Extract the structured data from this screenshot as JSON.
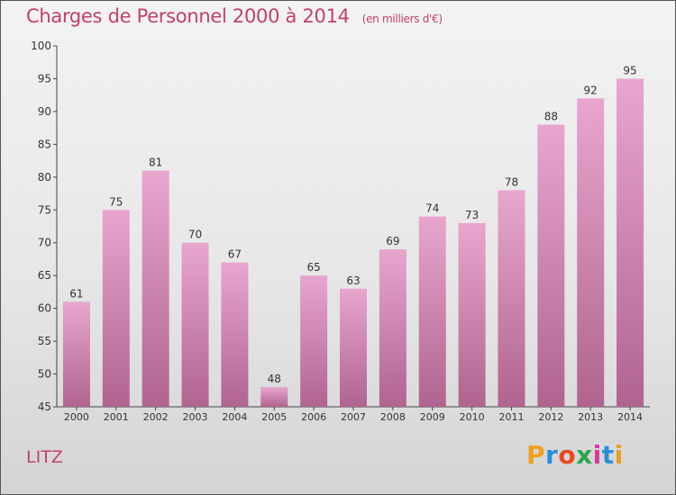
{
  "title": "Charges de Personnel 2000 à 2014",
  "subtitle": "(en milliers d'€)",
  "commune": "LITZ",
  "logo": {
    "letters": [
      "P",
      "r",
      "o",
      "x",
      "i",
      "t",
      "i"
    ],
    "colors": [
      "#f0a020",
      "#2a8fd8",
      "#e84a1e",
      "#2aa84a",
      "#d83aa0",
      "#2a8fd8",
      "#e8a020"
    ]
  },
  "colors": {
    "bar_top": "#e8a6cf",
    "bar_bottom": "#b0648f",
    "text": "#333333",
    "accent": "#c2416a"
  },
  "chart_data": {
    "type": "bar",
    "title": "Charges de Personnel 2000 à 2014",
    "categories": [
      "2000",
      "2001",
      "2002",
      "2003",
      "2004",
      "2005",
      "2006",
      "2007",
      "2008",
      "2009",
      "2010",
      "2011",
      "2012",
      "2013",
      "2014"
    ],
    "values": [
      61,
      75,
      81,
      70,
      67,
      48,
      65,
      63,
      69,
      74,
      73,
      78,
      88,
      92,
      95
    ],
    "ylim": [
      45,
      100
    ],
    "yticks": [
      45,
      50,
      55,
      60,
      65,
      70,
      75,
      80,
      85,
      90,
      95,
      100
    ],
    "xlabel": "",
    "ylabel": "",
    "grid": false,
    "data_labels": true
  }
}
